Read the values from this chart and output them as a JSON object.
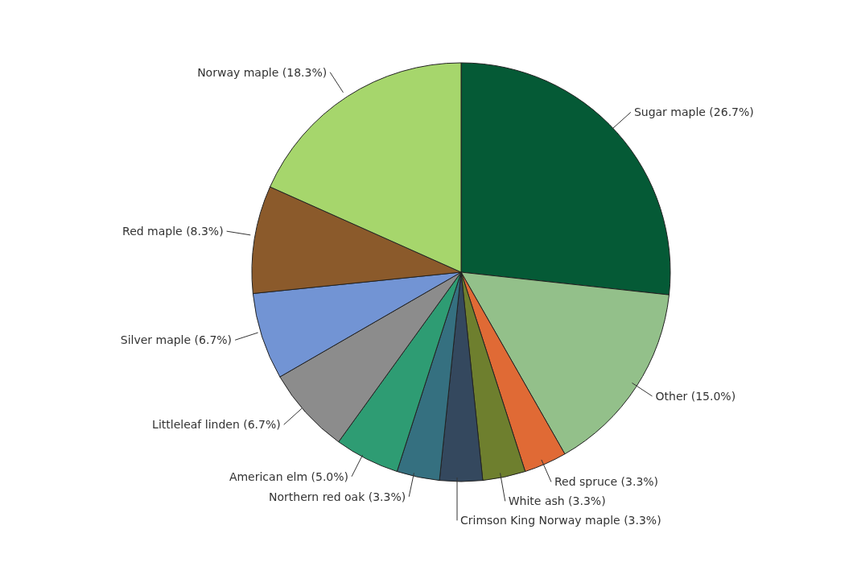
{
  "chart_data": {
    "type": "pie",
    "categories": [
      "Sugar maple",
      "Other",
      "Red spruce",
      "White ash",
      "Crimson King Norway maple",
      "Northern red oak",
      "American elm",
      "Littleleaf linden",
      "Silver maple",
      "Red maple",
      "Norway maple"
    ],
    "values": [
      26.7,
      15.0,
      3.3,
      3.3,
      3.3,
      3.3,
      5.0,
      6.7,
      6.7,
      8.3,
      18.3
    ],
    "value_labels": [
      "(26.7%)",
      "(15.0%)",
      "(3.3%)",
      "(3.3%)",
      "(3.3%)",
      "(3.3%)",
      "(5.0%)",
      "(6.7%)",
      "(6.7%)",
      "(8.3%)",
      "(18.3%)"
    ],
    "colors": [
      "#055a36",
      "#93c08a",
      "#e06a35",
      "#6e7f2e",
      "#34485e",
      "#357080",
      "#2e9c73",
      "#8c8c8c",
      "#7294d4",
      "#8b5a2b",
      "#a6d66c"
    ],
    "legend": false
  }
}
